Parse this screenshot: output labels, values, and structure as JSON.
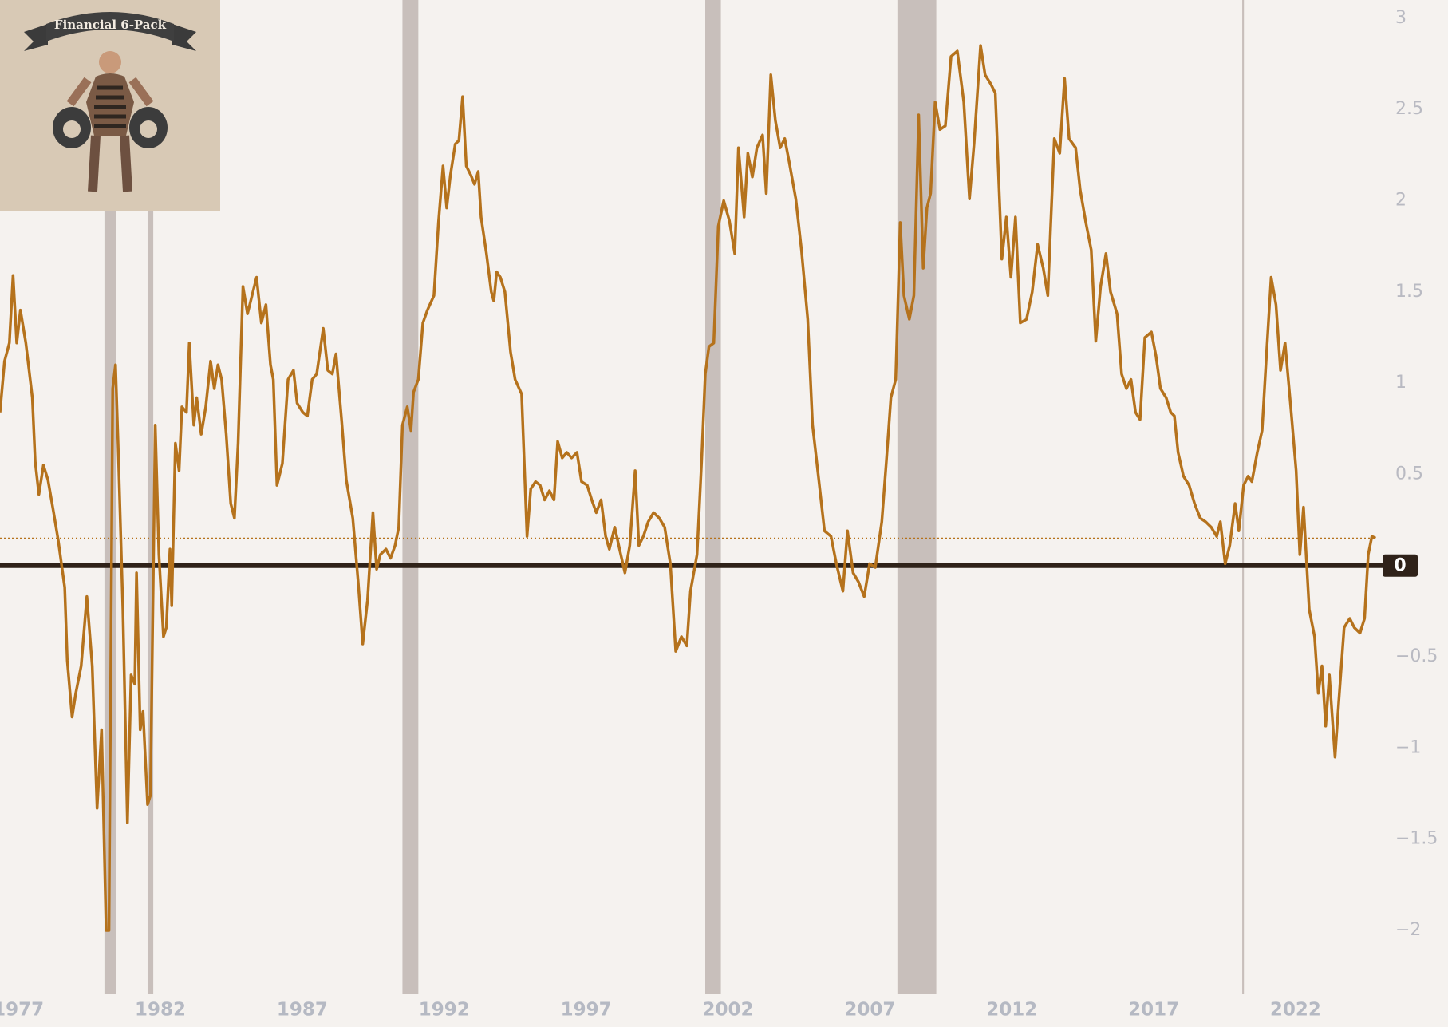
{
  "chart_data": {
    "type": "line",
    "logo": "Financial 6-Pack",
    "xlim": [
      1976.35,
      2025.15
    ],
    "ylim": [
      -2.35,
      3.1
    ],
    "xticks": [
      1977,
      1982,
      1987,
      1992,
      1997,
      2002,
      2007,
      2012,
      2017,
      2022
    ],
    "yticks": [
      3,
      2.5,
      2,
      1.5,
      1,
      0.5,
      0,
      {
        "value": -0.5,
        "label": "−0.5"
      },
      {
        "value": -1,
        "label": "−1"
      },
      {
        "value": -1.5,
        "label": "−1.5"
      },
      {
        "value": -2,
        "label": "−2"
      }
    ],
    "recession_color": "#c8bfbb",
    "recessions": [
      [
        1980.03,
        1980.45
      ],
      [
        1981.55,
        1981.75
      ],
      [
        1990.53,
        1991.09
      ],
      [
        2001.2,
        2001.75
      ],
      [
        2007.97,
        2009.34
      ],
      [
        2020.12,
        2020.18
      ]
    ],
    "x": [
      1976.35,
      1976.51,
      1976.68,
      1976.81,
      1976.94,
      1977.07,
      1977.26,
      1977.49,
      1977.59,
      1977.72,
      1977.88,
      1978.04,
      1978.24,
      1978.4,
      1978.63,
      1978.72,
      1978.89,
      1979.02,
      1979.21,
      1979.41,
      1979.6,
      1979.77,
      1979.93,
      1980.09,
      1980.19,
      1980.32,
      1980.42,
      1980.51,
      1980.68,
      1980.84,
      1980.97,
      1981.1,
      1981.16,
      1981.29,
      1981.39,
      1981.55,
      1981.65,
      1981.82,
      1981.95,
      1982.11,
      1982.21,
      1982.34,
      1982.4,
      1982.53,
      1982.66,
      1982.76,
      1982.92,
      1983.02,
      1983.18,
      1983.28,
      1983.44,
      1983.6,
      1983.77,
      1983.9,
      1984.03,
      1984.16,
      1984.32,
      1984.48,
      1984.61,
      1984.74,
      1984.91,
      1985.07,
      1985.23,
      1985.39,
      1985.56,
      1985.72,
      1985.88,
      1985.98,
      1986.11,
      1986.3,
      1986.5,
      1986.69,
      1986.82,
      1987.02,
      1987.18,
      1987.35,
      1987.51,
      1987.74,
      1987.9,
      1988.06,
      1988.19,
      1988.39,
      1988.55,
      1988.78,
      1988.97,
      1989.13,
      1989.3,
      1989.49,
      1989.62,
      1989.75,
      1989.95,
      1990.11,
      1990.27,
      1990.4,
      1990.53,
      1990.7,
      1990.83,
      1990.92,
      1991.09,
      1991.25,
      1991.41,
      1991.64,
      1991.8,
      1991.96,
      1992.09,
      1992.22,
      1992.39,
      1992.52,
      1992.65,
      1992.78,
      1992.94,
      1993.07,
      1993.2,
      1993.3,
      1993.49,
      1993.66,
      1993.75,
      1993.85,
      1993.98,
      1994.14,
      1994.34,
      1994.5,
      1994.73,
      1994.92,
      1995.05,
      1995.22,
      1995.38,
      1995.54,
      1995.71,
      1995.87,
      1996.0,
      1996.16,
      1996.32,
      1996.49,
      1996.68,
      1996.84,
      1997.04,
      1997.2,
      1997.36,
      1997.53,
      1997.69,
      1997.82,
      1998.01,
      1998.18,
      1998.37,
      1998.54,
      1998.73,
      1998.86,
      1999.02,
      1999.19,
      1999.38,
      1999.58,
      1999.77,
      1999.97,
      2000.16,
      2000.36,
      2000.55,
      2000.68,
      2000.91,
      2001.07,
      2001.2,
      2001.33,
      2001.5,
      2001.66,
      2001.85,
      2002.05,
      2002.24,
      2002.37,
      2002.57,
      2002.7,
      2002.86,
      2003.02,
      2003.22,
      2003.35,
      2003.51,
      2003.67,
      2003.84,
      2004.0,
      2004.16,
      2004.39,
      2004.59,
      2004.81,
      2004.98,
      2005.2,
      2005.4,
      2005.63,
      2005.82,
      2006.05,
      2006.21,
      2006.41,
      2006.6,
      2006.8,
      2006.99,
      2007.19,
      2007.42,
      2007.58,
      2007.74,
      2007.91,
      2008.07,
      2008.2,
      2008.39,
      2008.55,
      2008.72,
      2008.88,
      2009.01,
      2009.14,
      2009.3,
      2009.47,
      2009.66,
      2009.86,
      2010.08,
      2010.31,
      2010.51,
      2010.67,
      2010.9,
      2011.06,
      2011.26,
      2011.42,
      2011.65,
      2011.81,
      2011.97,
      2012.13,
      2012.3,
      2012.52,
      2012.72,
      2012.91,
      2013.11,
      2013.27,
      2013.37,
      2013.5,
      2013.69,
      2013.86,
      2014.02,
      2014.25,
      2014.41,
      2014.61,
      2014.8,
      2014.96,
      2015.13,
      2015.32,
      2015.48,
      2015.71,
      2015.87,
      2016.04,
      2016.2,
      2016.36,
      2016.52,
      2016.69,
      2016.92,
      2017.08,
      2017.24,
      2017.44,
      2017.6,
      2017.73,
      2017.86,
      2018.05,
      2018.25,
      2018.44,
      2018.64,
      2018.83,
      2019.03,
      2019.22,
      2019.35,
      2019.52,
      2019.68,
      2019.87,
      2020.0,
      2020.17,
      2020.33,
      2020.46,
      2020.65,
      2020.82,
      2020.98,
      2021.14,
      2021.31,
      2021.47,
      2021.63,
      2021.83,
      2022.02,
      2022.15,
      2022.28,
      2022.48,
      2022.67,
      2022.8,
      2022.93,
      2023.06,
      2023.19,
      2023.39,
      2023.52,
      2023.71,
      2023.91,
      2024.07,
      2024.27,
      2024.43,
      2024.56,
      2024.69,
      2024.82
    ],
    "series": [
      {
        "color": "#b5721c",
        "values": [
          0.84,
          1.12,
          1.22,
          1.59,
          1.22,
          1.4,
          1.22,
          0.92,
          0.57,
          0.39,
          0.55,
          0.47,
          0.29,
          0.14,
          -0.12,
          -0.52,
          -0.83,
          -0.7,
          -0.55,
          -0.17,
          -0.55,
          -1.33,
          -0.9,
          -2.0,
          -2.0,
          0.97,
          1.1,
          0.67,
          -0.24,
          -1.41,
          -0.6,
          -0.65,
          -0.04,
          -0.9,
          -0.8,
          -1.31,
          -1.26,
          0.77,
          0.06,
          -0.39,
          -0.34,
          0.09,
          -0.22,
          0.67,
          0.52,
          0.87,
          0.84,
          1.22,
          0.77,
          0.92,
          0.72,
          0.87,
          1.12,
          0.97,
          1.1,
          1.02,
          0.72,
          0.34,
          0.26,
          0.67,
          1.53,
          1.38,
          1.48,
          1.58,
          1.33,
          1.43,
          1.1,
          1.02,
          0.44,
          0.56,
          1.02,
          1.07,
          0.89,
          0.84,
          0.82,
          1.02,
          1.05,
          1.3,
          1.07,
          1.05,
          1.16,
          0.79,
          0.47,
          0.26,
          -0.09,
          -0.43,
          -0.19,
          0.29,
          -0.02,
          0.06,
          0.09,
          0.04,
          0.11,
          0.21,
          0.77,
          0.87,
          0.74,
          0.95,
          1.02,
          1.33,
          1.4,
          1.48,
          1.88,
          2.19,
          1.96,
          2.14,
          2.31,
          2.33,
          2.57,
          2.19,
          2.14,
          2.09,
          2.16,
          1.91,
          1.71,
          1.5,
          1.45,
          1.61,
          1.58,
          1.5,
          1.17,
          1.02,
          0.94,
          0.16,
          0.42,
          0.46,
          0.44,
          0.36,
          0.41,
          0.36,
          0.68,
          0.59,
          0.62,
          0.59,
          0.62,
          0.46,
          0.44,
          0.36,
          0.29,
          0.36,
          0.16,
          0.09,
          0.21,
          0.09,
          -0.04,
          0.11,
          0.52,
          0.11,
          0.16,
          0.24,
          0.29,
          0.26,
          0.21,
          0.01,
          -0.47,
          -0.39,
          -0.44,
          -0.14,
          0.06,
          0.57,
          1.05,
          1.2,
          1.22,
          1.86,
          2.0,
          1.89,
          1.71,
          2.29,
          1.91,
          2.26,
          2.13,
          2.29,
          2.36,
          2.04,
          2.69,
          2.44,
          2.29,
          2.34,
          2.21,
          2.01,
          1.73,
          1.35,
          0.77,
          0.47,
          0.19,
          0.16,
          0.01,
          -0.14,
          0.19,
          -0.04,
          -0.09,
          -0.17,
          0.01,
          -0.01,
          0.24,
          0.57,
          0.92,
          1.02,
          1.88,
          1.48,
          1.35,
          1.48,
          2.47,
          1.63,
          1.96,
          2.04,
          2.54,
          2.39,
          2.41,
          2.79,
          2.82,
          2.54,
          2.01,
          2.31,
          2.85,
          2.69,
          2.64,
          2.59,
          1.68,
          1.91,
          1.58,
          1.91,
          1.33,
          1.35,
          1.5,
          1.76,
          1.63,
          1.48,
          1.86,
          2.34,
          2.26,
          2.67,
          2.34,
          2.29,
          2.06,
          1.88,
          1.73,
          1.23,
          1.53,
          1.71,
          1.5,
          1.38,
          1.05,
          0.97,
          1.02,
          0.84,
          0.8,
          1.25,
          1.28,
          1.15,
          0.97,
          0.92,
          0.84,
          0.82,
          0.62,
          0.49,
          0.44,
          0.34,
          0.26,
          0.24,
          0.21,
          0.16,
          0.24,
          0.01,
          0.11,
          0.34,
          0.19,
          0.44,
          0.49,
          0.46,
          0.62,
          0.74,
          1.17,
          1.58,
          1.43,
          1.07,
          1.22,
          0.87,
          0.52,
          0.06,
          0.32,
          -0.24,
          -0.39,
          -0.7,
          -0.55,
          -0.88,
          -0.6,
          -1.05,
          -0.75,
          -0.34,
          -0.29,
          -0.34,
          -0.37,
          -0.29,
          0.06,
          0.16,
          0.15
        ]
      }
    ]
  }
}
